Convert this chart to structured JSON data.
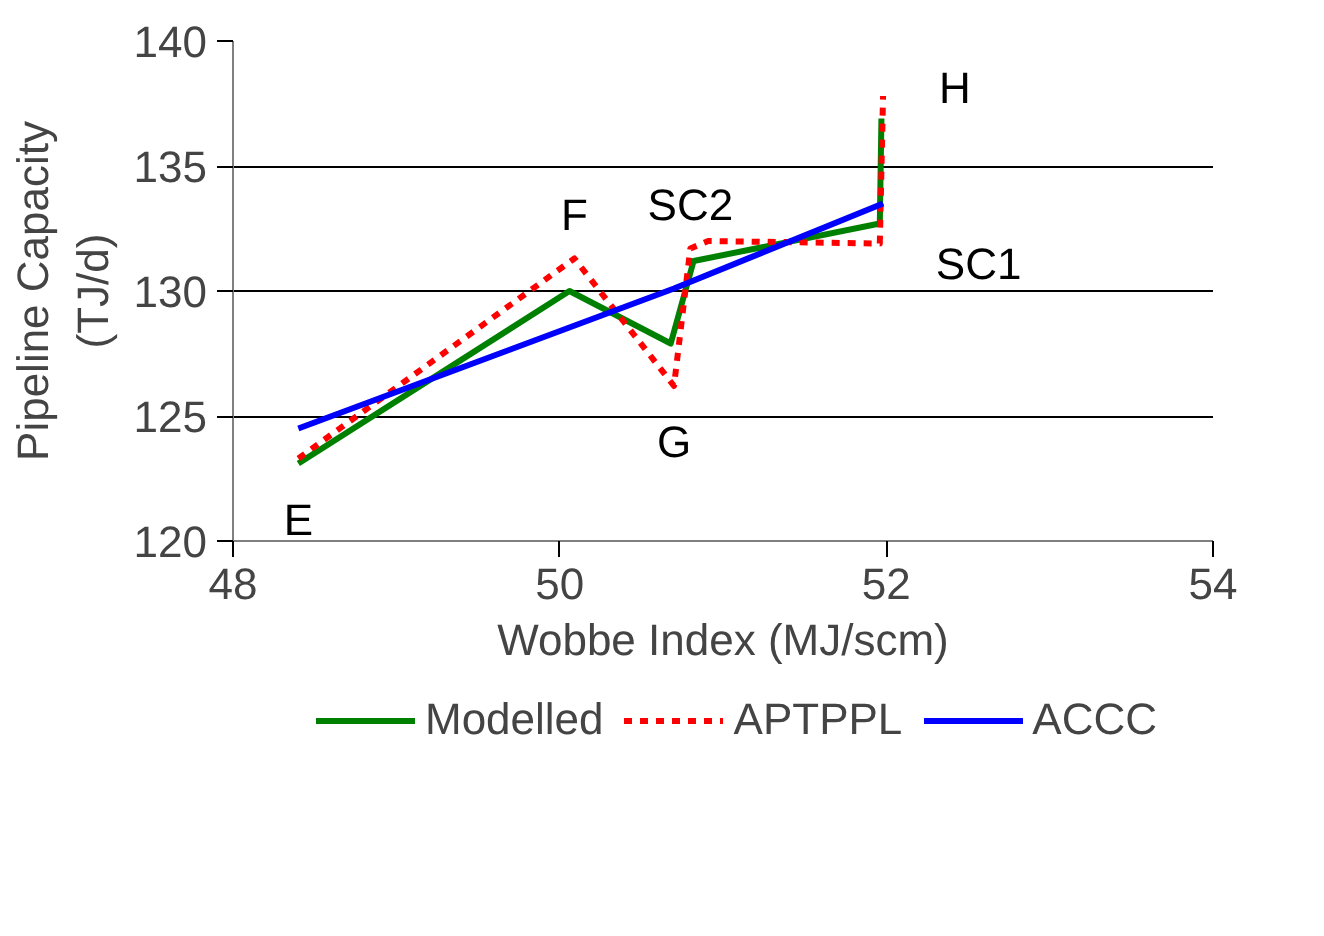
{
  "chart_data": {
    "type": "line",
    "xlabel": "Wobbe Index (MJ/scm)",
    "ylabel": "Pipeline Capacity (TJ/d)",
    "xlim": [
      48,
      54
    ],
    "ylim": [
      120,
      140
    ],
    "xticks": [
      48,
      50,
      52,
      54
    ],
    "yticks": [
      120,
      125,
      130,
      135,
      140
    ],
    "grid": "y",
    "legend": "bottom",
    "series": [
      {
        "name": "Modelled",
        "color": "#008000",
        "line_style": "solid",
        "x": [
          48.4,
          50.06,
          50.68,
          50.82,
          51.96,
          51.97
        ],
        "values": [
          123.1,
          130.0,
          127.9,
          131.2,
          132.7,
          136.9
        ]
      },
      {
        "name": "APTPPL",
        "color": "#ff0000",
        "line_style": "dashed",
        "x": [
          48.4,
          50.09,
          50.7,
          50.8,
          50.91,
          51.96,
          51.98
        ],
        "values": [
          123.3,
          131.3,
          126.2,
          131.7,
          132.0,
          131.9,
          137.8
        ]
      },
      {
        "name": "ACCC",
        "color": "#0000ff",
        "line_style": "solid",
        "x": [
          48.4,
          50.7,
          51.98
        ],
        "values": [
          124.5,
          130.1,
          133.5
        ]
      }
    ],
    "annotations": [
      {
        "text": "E",
        "x": 48.4,
        "y": 123.1
      },
      {
        "text": "F",
        "x": 50.09,
        "y": 131.3
      },
      {
        "text": "G",
        "x": 50.7,
        "y": 126.2
      },
      {
        "text": "SC2",
        "x": 50.8,
        "y": 131.7
      },
      {
        "text": "SC1",
        "x": 51.96,
        "y": 131.9
      },
      {
        "text": "H",
        "x": 51.98,
        "y": 137.8
      }
    ]
  }
}
